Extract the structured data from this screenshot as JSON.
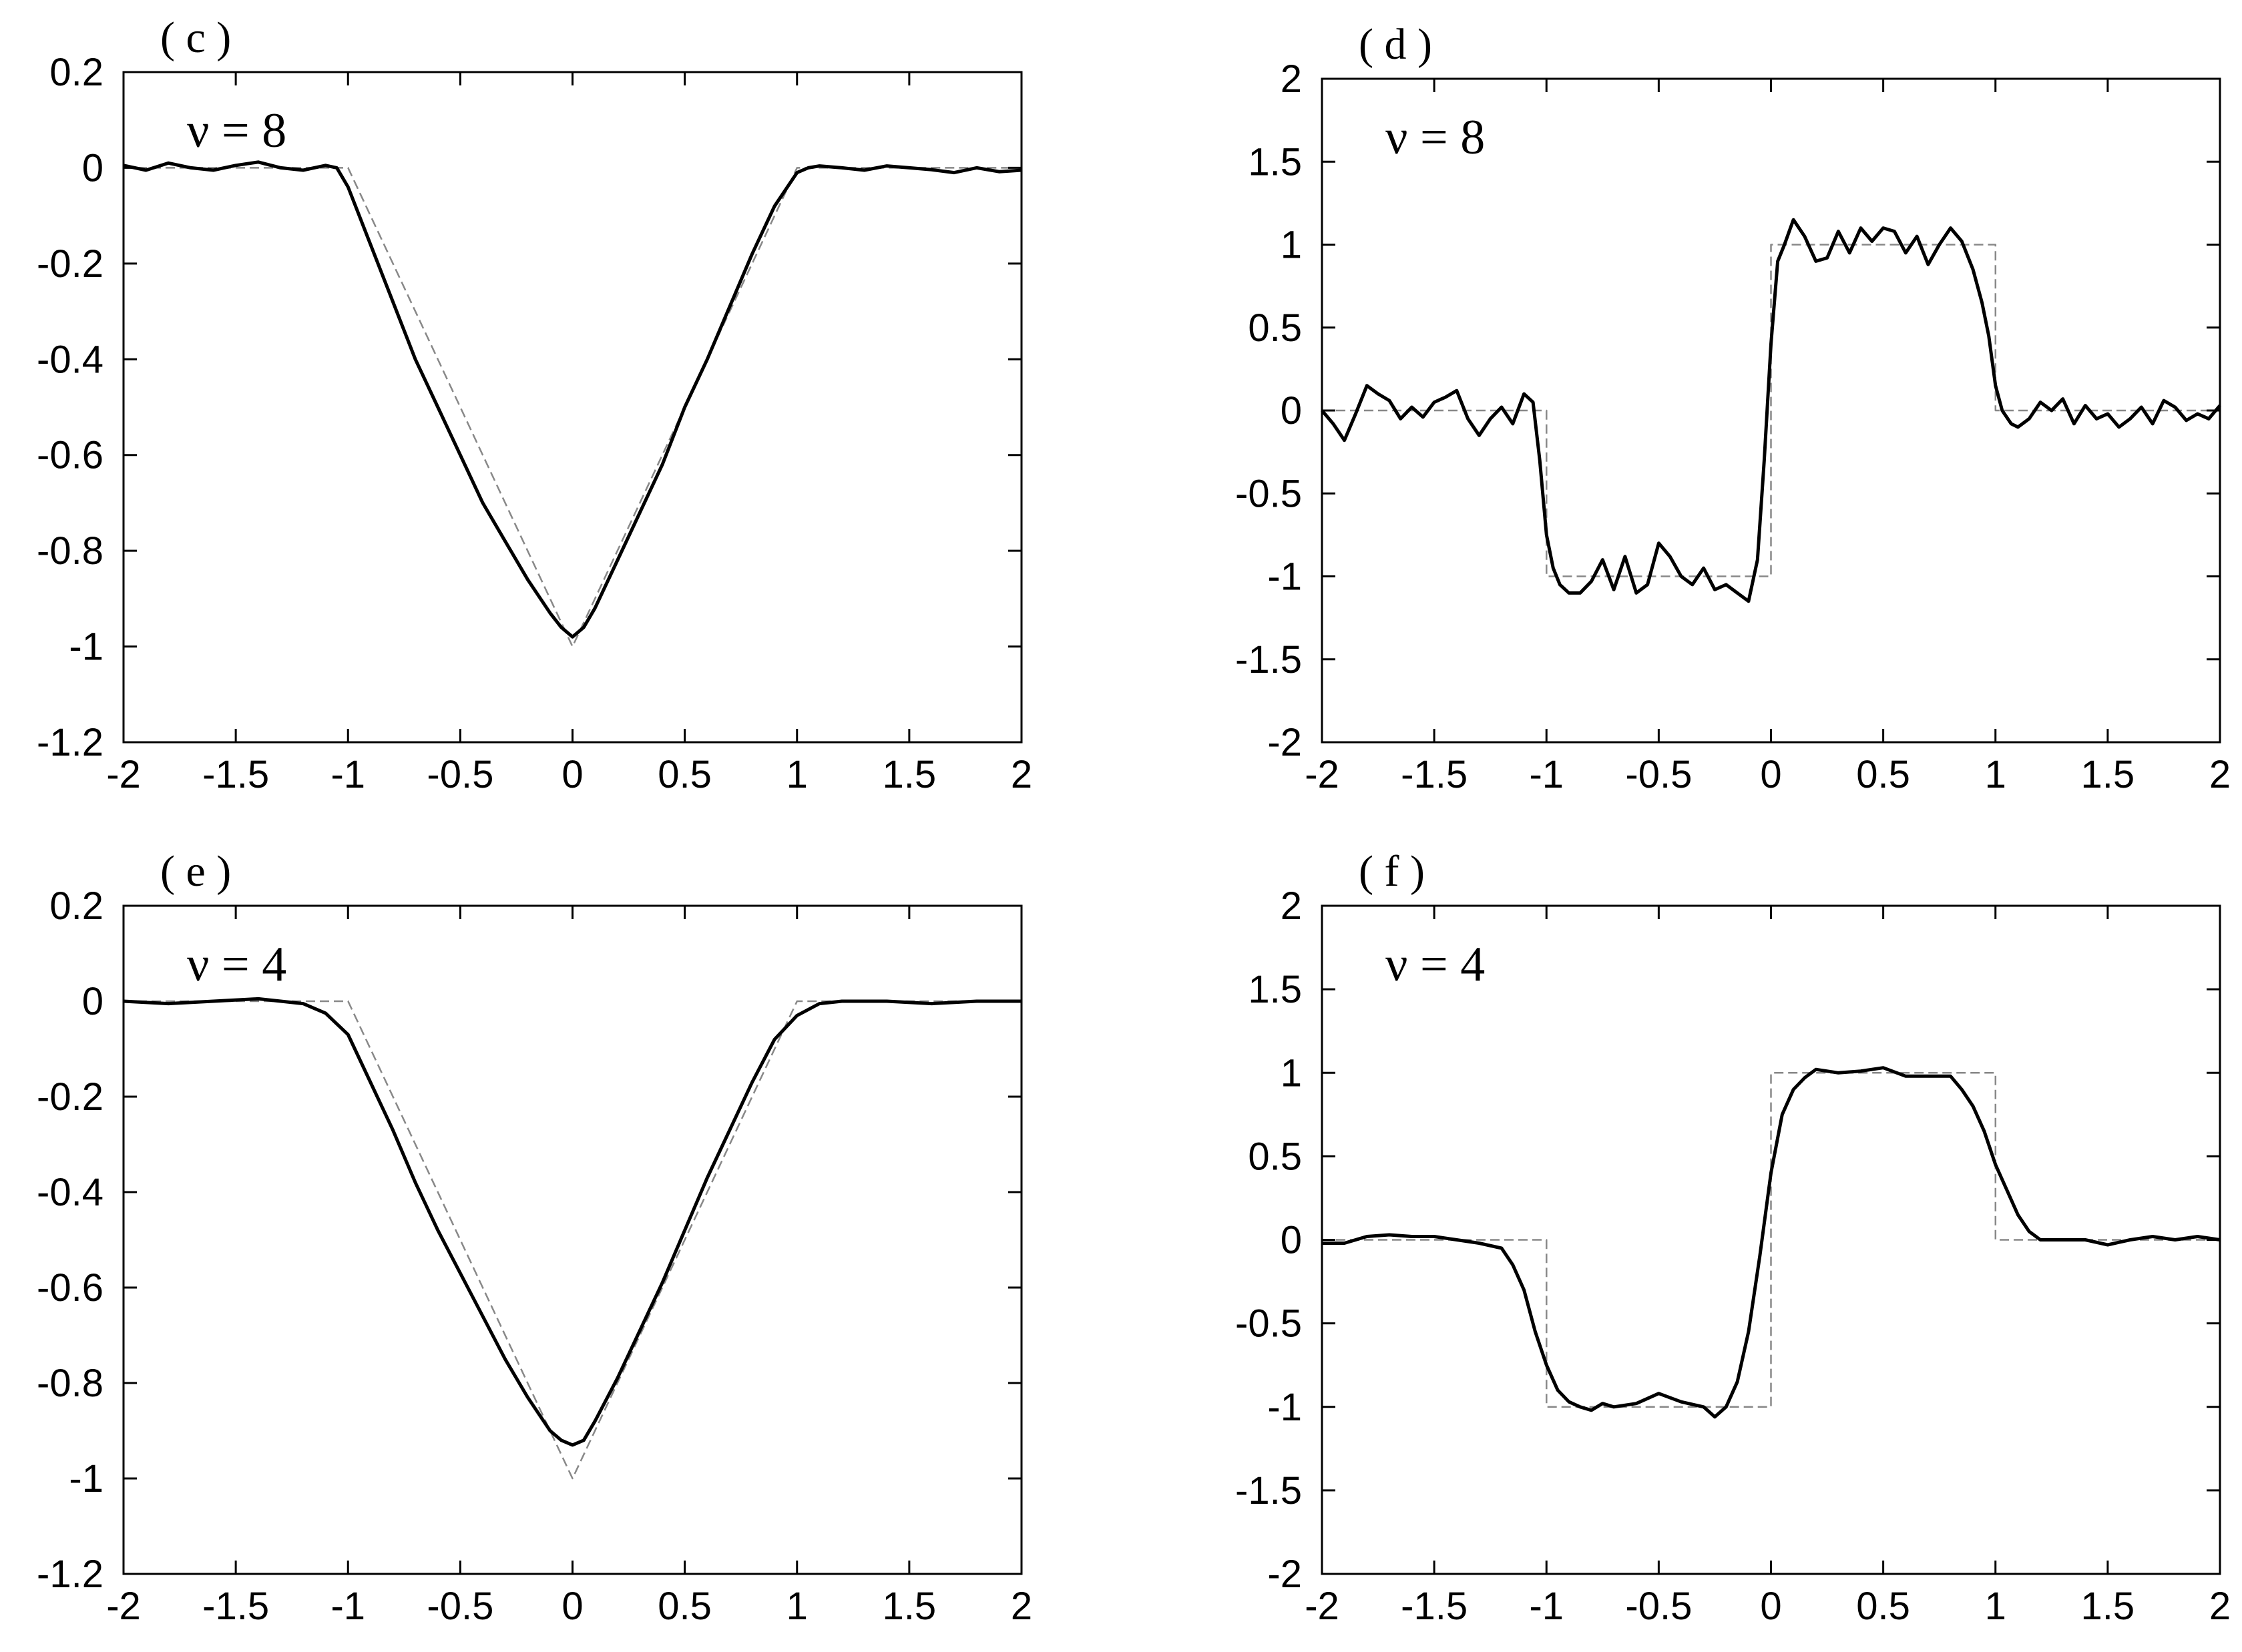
{
  "chart_data": [
    {
      "id": "c",
      "type": "line",
      "panel_label": "( c )",
      "annotation": "ν = 8",
      "xlim": [
        -2,
        2
      ],
      "ylim": [
        -1.2,
        0.2
      ],
      "xticks": [
        "-2",
        "-1.5",
        "-1",
        "-0.5",
        "0",
        "0.5",
        "1",
        "1.5",
        "2"
      ],
      "yticks": [
        "0.2",
        "0",
        "-0.2",
        "-0.4",
        "-0.6",
        "-0.8",
        "-1",
        "-1.2"
      ],
      "grid": false,
      "title": "",
      "xlabel": "",
      "ylabel": "",
      "series": [
        {
          "style": "dashed-reference",
          "x": [
            -2,
            -1,
            0,
            1,
            2
          ],
          "y": [
            0,
            0,
            -1,
            0,
            0
          ]
        },
        {
          "style": "solid-estimate",
          "x": [
            -2,
            -1.9,
            -1.8,
            -1.7,
            -1.6,
            -1.5,
            -1.4,
            -1.3,
            -1.2,
            -1.1,
            -1.05,
            -1.0,
            -0.9,
            -0.8,
            -0.7,
            -0.6,
            -0.5,
            -0.4,
            -0.3,
            -0.2,
            -0.1,
            -0.05,
            0,
            0.05,
            0.1,
            0.2,
            0.3,
            0.4,
            0.5,
            0.6,
            0.7,
            0.8,
            0.9,
            1.0,
            1.05,
            1.1,
            1.2,
            1.3,
            1.4,
            1.5,
            1.6,
            1.7,
            1.8,
            1.9,
            2
          ],
          "y": [
            0.005,
            -0.005,
            0.01,
            0.0,
            -0.005,
            0.005,
            0.012,
            0.0,
            -0.005,
            0.005,
            0.0,
            -0.04,
            -0.16,
            -0.28,
            -0.4,
            -0.5,
            -0.6,
            -0.7,
            -0.78,
            -0.86,
            -0.93,
            -0.96,
            -0.98,
            -0.96,
            -0.92,
            -0.82,
            -0.72,
            -0.62,
            -0.5,
            -0.4,
            -0.29,
            -0.18,
            -0.08,
            -0.01,
            0.0,
            0.004,
            0.0,
            -0.005,
            0.004,
            0.0,
            -0.004,
            -0.01,
            0.0,
            -0.008,
            -0.005
          ]
        }
      ]
    },
    {
      "id": "d",
      "type": "line",
      "panel_label": "( d )",
      "annotation": "ν = 8",
      "xlim": [
        -2,
        2
      ],
      "ylim": [
        -2,
        2
      ],
      "xticks": [
        "-2",
        "-1.5",
        "-1",
        "-0.5",
        "0",
        "0.5",
        "1",
        "1.5",
        "2"
      ],
      "yticks": [
        "2",
        "1.5",
        "1",
        "0.5",
        "0",
        "-0.5",
        "-1",
        "-1.5",
        "-2"
      ],
      "grid": false,
      "title": "",
      "xlabel": "",
      "ylabel": "",
      "series": [
        {
          "style": "dashed-reference",
          "x": [
            -2,
            -1,
            -1,
            0,
            0,
            1,
            1,
            2
          ],
          "y": [
            0,
            0,
            -1,
            -1,
            1,
            1,
            0,
            0
          ]
        },
        {
          "style": "solid-estimate",
          "x": [
            -2,
            -1.95,
            -1.9,
            -1.85,
            -1.8,
            -1.75,
            -1.7,
            -1.65,
            -1.6,
            -1.55,
            -1.5,
            -1.45,
            -1.4,
            -1.35,
            -1.3,
            -1.25,
            -1.2,
            -1.15,
            -1.1,
            -1.06,
            -1.03,
            -1.0,
            -0.97,
            -0.94,
            -0.9,
            -0.85,
            -0.8,
            -0.75,
            -0.7,
            -0.65,
            -0.6,
            -0.55,
            -0.5,
            -0.45,
            -0.4,
            -0.35,
            -0.3,
            -0.25,
            -0.2,
            -0.15,
            -0.1,
            -0.06,
            -0.03,
            0.0,
            0.03,
            0.06,
            0.1,
            0.15,
            0.2,
            0.25,
            0.3,
            0.35,
            0.4,
            0.45,
            0.5,
            0.55,
            0.6,
            0.65,
            0.7,
            0.75,
            0.8,
            0.85,
            0.9,
            0.94,
            0.97,
            1.0,
            1.03,
            1.07,
            1.1,
            1.15,
            1.2,
            1.25,
            1.3,
            1.35,
            1.4,
            1.45,
            1.5,
            1.55,
            1.6,
            1.65,
            1.7,
            1.75,
            1.8,
            1.85,
            1.9,
            1.95,
            2
          ],
          "y": [
            0.0,
            -0.08,
            -0.18,
            -0.02,
            0.15,
            0.1,
            0.06,
            -0.05,
            0.02,
            -0.04,
            0.05,
            0.08,
            0.12,
            -0.05,
            -0.15,
            -0.05,
            0.02,
            -0.08,
            0.1,
            0.05,
            -0.3,
            -0.75,
            -0.95,
            -1.05,
            -1.1,
            -1.1,
            -1.03,
            -0.9,
            -1.08,
            -0.88,
            -1.1,
            -1.05,
            -0.8,
            -0.88,
            -1.0,
            -1.05,
            -0.95,
            -1.08,
            -1.05,
            -1.1,
            -1.15,
            -0.9,
            -0.3,
            0.4,
            0.9,
            1.0,
            1.15,
            1.05,
            0.9,
            0.92,
            1.08,
            0.95,
            1.1,
            1.02,
            1.1,
            1.08,
            0.95,
            1.05,
            0.88,
            1.0,
            1.1,
            1.02,
            0.85,
            0.65,
            0.45,
            0.15,
            0.0,
            -0.08,
            -0.1,
            -0.05,
            0.05,
            0.0,
            0.07,
            -0.08,
            0.03,
            -0.05,
            -0.02,
            -0.1,
            -0.05,
            0.02,
            -0.08,
            0.06,
            0.02,
            -0.06,
            -0.02,
            -0.05,
            0.03
          ]
        }
      ]
    },
    {
      "id": "e",
      "type": "line",
      "panel_label": "( e )",
      "annotation": "ν = 4",
      "xlim": [
        -2,
        2
      ],
      "ylim": [
        -1.2,
        0.2
      ],
      "xticks": [
        "-2",
        "-1.5",
        "-1",
        "-0.5",
        "0",
        "0.5",
        "1",
        "1.5",
        "2"
      ],
      "yticks": [
        "0.2",
        "0",
        "-0.2",
        "-0.4",
        "-0.6",
        "-0.8",
        "-1",
        "-1.2"
      ],
      "grid": false,
      "title": "",
      "xlabel": "",
      "ylabel": "",
      "series": [
        {
          "style": "dashed-reference",
          "x": [
            -2,
            -1,
            0,
            1,
            2
          ],
          "y": [
            0,
            0,
            -1,
            0,
            0
          ]
        },
        {
          "style": "solid-estimate",
          "x": [
            -2,
            -1.8,
            -1.6,
            -1.4,
            -1.2,
            -1.1,
            -1.0,
            -0.9,
            -0.8,
            -0.7,
            -0.6,
            -0.5,
            -0.4,
            -0.3,
            -0.2,
            -0.1,
            -0.05,
            0,
            0.05,
            0.1,
            0.2,
            0.3,
            0.4,
            0.5,
            0.6,
            0.7,
            0.8,
            0.9,
            1.0,
            1.1,
            1.2,
            1.4,
            1.6,
            1.8,
            2
          ],
          "y": [
            0.0,
            -0.005,
            0.0,
            0.005,
            -0.005,
            -0.025,
            -0.07,
            -0.17,
            -0.27,
            -0.38,
            -0.48,
            -0.57,
            -0.66,
            -0.75,
            -0.83,
            -0.9,
            -0.92,
            -0.93,
            -0.92,
            -0.88,
            -0.79,
            -0.69,
            -0.59,
            -0.48,
            -0.37,
            -0.27,
            -0.17,
            -0.08,
            -0.03,
            -0.005,
            0.0,
            0.0,
            -0.005,
            0.0,
            0.0
          ]
        }
      ]
    },
    {
      "id": "f",
      "type": "line",
      "panel_label": "( f )",
      "annotation": "ν = 4",
      "xlim": [
        -2,
        2
      ],
      "ylim": [
        -2,
        2
      ],
      "xticks": [
        "-2",
        "-1.5",
        "-1",
        "-0.5",
        "0",
        "0.5",
        "1",
        "1.5",
        "2"
      ],
      "yticks": [
        "2",
        "1.5",
        "1",
        "0.5",
        "0",
        "-0.5",
        "-1",
        "-1.5",
        "-2"
      ],
      "grid": false,
      "title": "",
      "xlabel": "",
      "ylabel": "",
      "series": [
        {
          "style": "dashed-reference",
          "x": [
            -2,
            -1,
            -1,
            0,
            0,
            1,
            1,
            2
          ],
          "y": [
            0,
            0,
            -1,
            -1,
            1,
            1,
            0,
            0
          ]
        },
        {
          "style": "solid-estimate",
          "x": [
            -2,
            -1.9,
            -1.8,
            -1.7,
            -1.6,
            -1.5,
            -1.4,
            -1.3,
            -1.2,
            -1.15,
            -1.1,
            -1.05,
            -1.0,
            -0.95,
            -0.9,
            -0.85,
            -0.8,
            -0.75,
            -0.7,
            -0.6,
            -0.5,
            -0.4,
            -0.3,
            -0.25,
            -0.2,
            -0.15,
            -0.1,
            -0.05,
            0.0,
            0.05,
            0.1,
            0.15,
            0.2,
            0.3,
            0.4,
            0.5,
            0.6,
            0.7,
            0.8,
            0.85,
            0.9,
            0.95,
            1.0,
            1.05,
            1.1,
            1.15,
            1.2,
            1.3,
            1.4,
            1.5,
            1.6,
            1.7,
            1.8,
            1.9,
            2
          ],
          "y": [
            -0.02,
            -0.02,
            0.02,
            0.03,
            0.02,
            0.02,
            0.0,
            -0.02,
            -0.05,
            -0.15,
            -0.3,
            -0.55,
            -0.75,
            -0.9,
            -0.97,
            -1.0,
            -1.02,
            -0.98,
            -1.0,
            -0.98,
            -0.92,
            -0.97,
            -1.0,
            -1.06,
            -1.0,
            -0.85,
            -0.55,
            -0.1,
            0.4,
            0.75,
            0.9,
            0.97,
            1.02,
            1.0,
            1.01,
            1.03,
            0.98,
            0.98,
            0.98,
            0.9,
            0.8,
            0.65,
            0.45,
            0.3,
            0.15,
            0.05,
            0.0,
            0.0,
            0.0,
            -0.03,
            0.0,
            0.02,
            0.0,
            0.02,
            0.0
          ]
        }
      ]
    }
  ]
}
